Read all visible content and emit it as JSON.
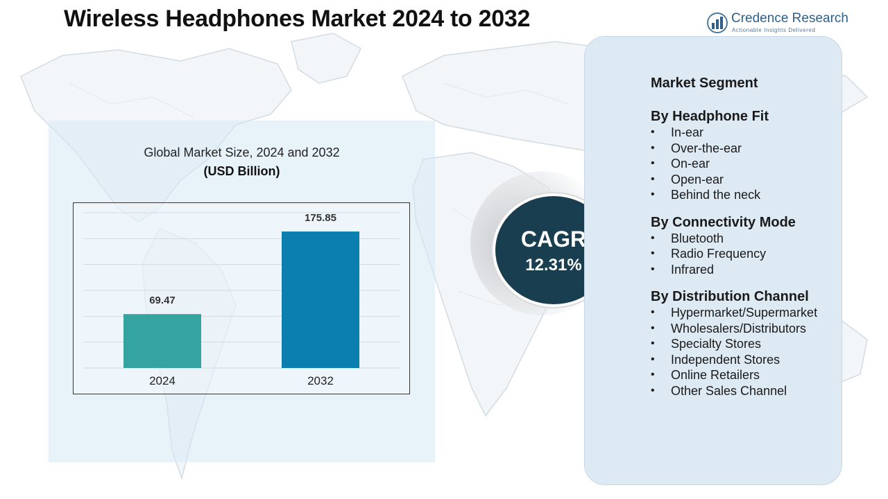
{
  "title": "Wireless Headphones Market  2024 to 2032",
  "logo": {
    "name": "Credence Research",
    "tagline": "Actionable Insights Delivered",
    "icon": "bar-chart-logo-icon"
  },
  "chart": {
    "title": "Global Market Size, 2024 and 2032",
    "unit": "(USD Billion)"
  },
  "chart_data": {
    "type": "bar",
    "categories": [
      "2024",
      "2032"
    ],
    "values": [
      69.47,
      175.85
    ],
    "value_labels": [
      "69.47",
      "175.85"
    ],
    "title": "Global Market Size, 2024 and 2032",
    "subtitle": "(USD Billion)",
    "xlabel": "",
    "ylabel": "",
    "ylim": [
      0,
      200
    ],
    "grid": true,
    "legend": "none",
    "colors": [
      "#35a3a0",
      "#0a7fb0"
    ]
  },
  "cagr": {
    "label": "CAGR",
    "value": "12.31%"
  },
  "segments": {
    "header": "Market Segment",
    "groups": [
      {
        "title": "By Headphone Fit",
        "items": [
          "In-ear",
          "Over-the-ear",
          "On-ear",
          "Open-ear",
          "Behind the neck"
        ]
      },
      {
        "title": "By Connectivity Mode",
        "items": [
          "Bluetooth",
          "Radio Frequency",
          "Infrared"
        ]
      },
      {
        "title": "By Distribution Channel",
        "items": [
          "Hypermarket/Supermarket",
          "Wholesalers/Distributors",
          "Specialty Stores",
          "Independent Stores",
          "Online Retailers",
          "Other Sales Channel"
        ]
      }
    ]
  },
  "colors": {
    "accent_dark": "#183e50",
    "panel": "#dde9f3",
    "bar_2024": "#35a3a0",
    "bar_2032": "#0a7fb0"
  }
}
